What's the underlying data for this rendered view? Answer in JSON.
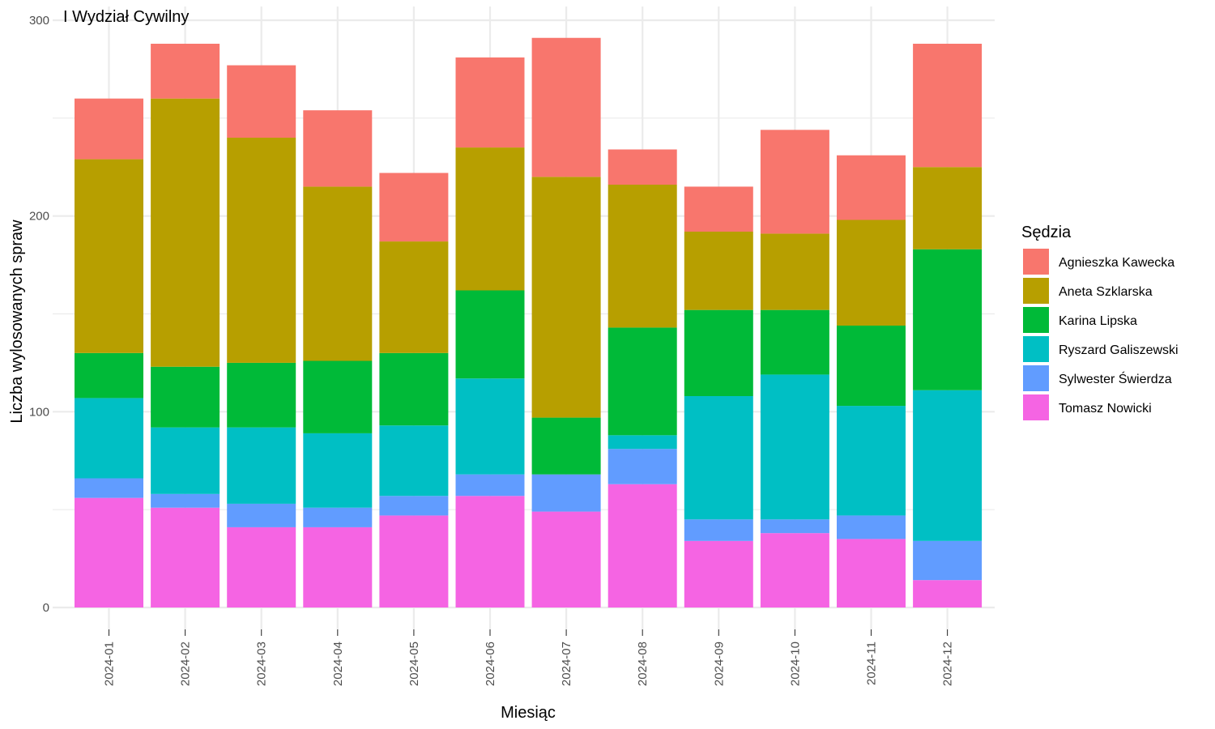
{
  "chart_data": {
    "type": "bar",
    "stacked": true,
    "title": "I Wydział Cywilny",
    "xlabel": "Miesiąc",
    "ylabel": "Liczba wylosowanych spraw",
    "ylim": [
      0,
      300
    ],
    "yticks": [
      0,
      100,
      200,
      300
    ],
    "grid": true,
    "legend_position": "right",
    "legend_title": "Sędzia",
    "categories": [
      "2024-01",
      "2024-02",
      "2024-03",
      "2024-04",
      "2024-05",
      "2024-06",
      "2024-07",
      "2024-08",
      "2024-09",
      "2024-10",
      "2024-11",
      "2024-12"
    ],
    "stack_order_bottom_to_top": [
      "Tomasz Nowicki",
      "Sylwester Świerdza",
      "Ryszard Galiszewski",
      "Karina Lipska",
      "Aneta Szklarska",
      "Agnieszka Kawecka"
    ],
    "series": [
      {
        "name": "Agnieszka Kawecka",
        "color": "#F8766D",
        "values": [
          31,
          28,
          37,
          39,
          35,
          46,
          71,
          18,
          23,
          53,
          33,
          63
        ]
      },
      {
        "name": "Aneta Szklarska",
        "color": "#B79F00",
        "values": [
          99,
          137,
          115,
          89,
          57,
          73,
          123,
          73,
          40,
          39,
          54,
          42
        ]
      },
      {
        "name": "Karina Lipska",
        "color": "#00BA38",
        "values": [
          23,
          31,
          33,
          37,
          37,
          45,
          29,
          55,
          44,
          33,
          41,
          72
        ]
      },
      {
        "name": "Ryszard Galiszewski",
        "color": "#00BFC4",
        "values": [
          41,
          34,
          39,
          38,
          36,
          49,
          0,
          7,
          63,
          74,
          56,
          77
        ]
      },
      {
        "name": "Sylwester Świerdza",
        "color": "#619CFF",
        "values": [
          10,
          7,
          12,
          10,
          10,
          11,
          19,
          18,
          11,
          7,
          12,
          20
        ]
      },
      {
        "name": "Tomasz Nowicki",
        "color": "#F564E3",
        "values": [
          56,
          51,
          41,
          41,
          47,
          57,
          49,
          63,
          34,
          38,
          35,
          14
        ]
      }
    ]
  }
}
